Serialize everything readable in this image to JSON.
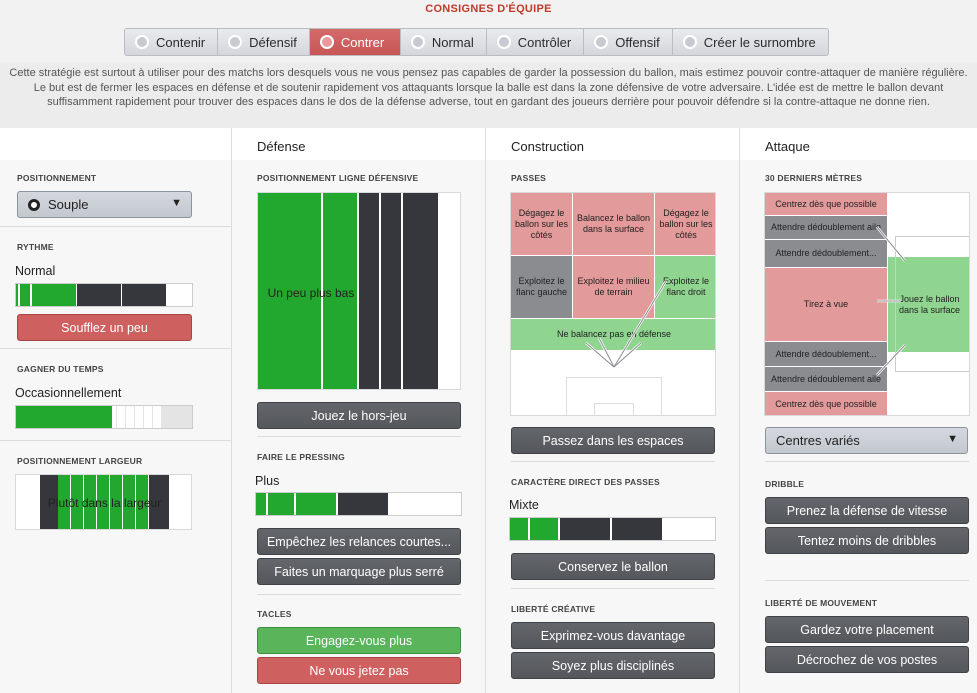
{
  "title": "CONSIGNES D'ÉQUIPE",
  "tabs": [
    {
      "label": "Contenir",
      "icon": "heart-shield-icon"
    },
    {
      "label": "Défensif",
      "icon": "shield-icon"
    },
    {
      "label": "Contrer",
      "icon": "counter-icon",
      "active": true
    },
    {
      "label": "Normal",
      "icon": "ball-icon"
    },
    {
      "label": "Contrôler",
      "icon": "control-icon"
    },
    {
      "label": "Offensif",
      "icon": "attack-arrow-icon"
    },
    {
      "label": "Créer le surnombre",
      "icon": "overload-icon"
    }
  ],
  "description": "Cette stratégie est surtout à utiliser pour des matchs lors desquels vous ne vous pensez pas capables de garder la possession du ballon, mais estimez pouvoir contre-attaquer de manière régulière. Le but est de fermer les espaces en défense et de soutenir rapidement vos attaquants lorsque la balle est dans la zone défensive de votre adversaire. L'idée est de mettre le ballon devant suffisamment rapidement pour trouver des espaces dans le dos de la défense adverse, tout en gardant des joueurs derrière pour pouvoir défendre si la contre-attaque ne donne rien.",
  "general": {
    "positionnement": {
      "label": "POSITIONNEMENT",
      "value": "Souple"
    },
    "rythme": {
      "label": "RYTHME",
      "value": "Normal",
      "button": "Soufflez un peu"
    },
    "gagner": {
      "label": "GAGNER DU TEMPS",
      "value": "Occasionnellement"
    },
    "largeur": {
      "label": "POSITIONNEMENT LARGEUR",
      "value": "Plutôt dans la largeur"
    }
  },
  "defense": {
    "header": "Défense",
    "ligne": {
      "label": "POSITIONNEMENT LIGNE DÉFENSIVE",
      "value": "Un peu plus bas",
      "button": "Jouez le hors-jeu"
    },
    "pressing": {
      "label": "FAIRE LE PRESSING",
      "value": "Plus",
      "buttons": [
        "Empêchez les relances courtes...",
        "Faites un marquage plus serré"
      ]
    },
    "tacles": {
      "label": "TACLES",
      "buttons": [
        "Engagez-vous plus",
        "Ne vous jetez pas"
      ]
    }
  },
  "construction": {
    "header": "Construction",
    "passes": {
      "label": "PASSES",
      "zones": [
        "Dégagez le ballon sur les côtés",
        "Balancez le ballon dans la surface",
        "Dégagez le ballon sur les côtés",
        "Exploitez le flanc gauche",
        "Exploitez le milieu de terrain",
        "Exploitez le flanc droit",
        "Ne balancez pas en défense"
      ],
      "button": "Passez dans les espaces"
    },
    "direct": {
      "label": "CARACTÈRE DIRECT DES PASSES",
      "value": "Mixte",
      "button": "Conservez le ballon"
    },
    "liberte": {
      "label": "LIBERTÉ CRÉATIVE",
      "buttons": [
        "Exprimez-vous davantage",
        "Soyez plus disciplinés"
      ]
    }
  },
  "attaque": {
    "header": "Attaque",
    "derniers": {
      "label": "30 DERNIERS MÈTRES",
      "zones": [
        "Centrez dès que possible",
        "Attendre dédoublement aile",
        "Attendre dédoublement...",
        "Tirez à vue",
        "Jouez le ballon dans la surface",
        "Attendre dédoublement...",
        "Attendre dédoublement aile",
        "Centrez dès que possible"
      ],
      "dropdown": "Centres variés"
    },
    "dribble": {
      "label": "DRIBBLE",
      "buttons": [
        "Prenez la défense de vitesse",
        "Tentez moins de dribbles"
      ]
    },
    "mouvement": {
      "label": "LIBERTÉ DE MOUVEMENT",
      "buttons": [
        "Gardez votre placement",
        "Décrochez de vos postes"
      ]
    }
  },
  "colors": {
    "accent": "#c0392b",
    "green": "#22a82e",
    "dark": "#35373c",
    "red_zone": "#e39a9a",
    "green_zone": "#8fd48f"
  }
}
